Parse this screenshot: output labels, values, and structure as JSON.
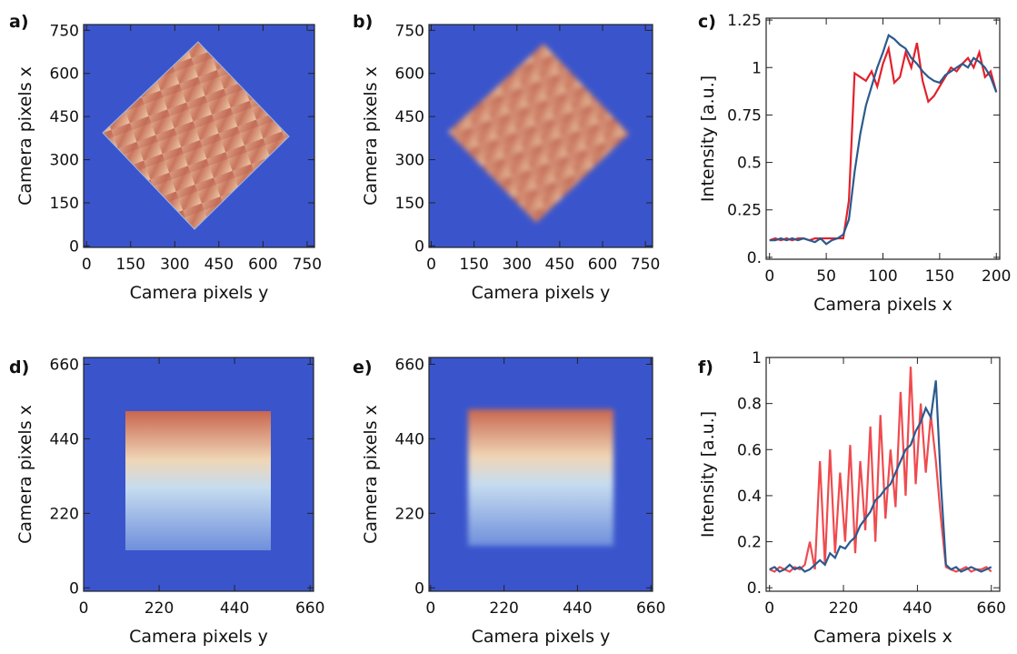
{
  "chart_data": [
    {
      "type": "image",
      "panel_label": "a)",
      "xlabel": "Camera pixels y",
      "ylabel": "Camera pixels x",
      "xlim": [
        -10,
        775
      ],
      "ylim": [
        -5,
        770
      ],
      "xticks": [
        0,
        150,
        300,
        450,
        600,
        750
      ],
      "yticks": [
        0,
        150,
        300,
        450,
        600,
        750
      ]
    },
    {
      "type": "image",
      "panel_label": "b)",
      "xlabel": "Camera pixels y",
      "ylabel": "Camera pixels x",
      "xlim": [
        -8,
        775
      ],
      "ylim": [
        -5,
        770
      ],
      "xticks": [
        0,
        150,
        300,
        450,
        600,
        750
      ],
      "yticks": [
        0,
        150,
        300,
        450,
        600,
        750
      ]
    },
    {
      "type": "line",
      "panel_label": "c)",
      "xlabel": "Camera pixels x",
      "ylabel": "Intensity [a.u.]",
      "xlim": [
        -3,
        203
      ],
      "ylim": [
        -0.01,
        1.26
      ],
      "xticks": [
        0,
        50,
        100,
        150,
        200
      ],
      "yticks": [
        {
          "value": 0,
          "label": "0."
        },
        0.25,
        0.5,
        0.75,
        1,
        1.25
      ],
      "x": [
        0,
        5,
        10,
        15,
        20,
        25,
        30,
        35,
        40,
        45,
        50,
        55,
        60,
        65,
        70,
        75,
        80,
        85,
        90,
        95,
        100,
        105,
        110,
        115,
        120,
        125,
        130,
        135,
        140,
        145,
        150,
        155,
        160,
        165,
        170,
        175,
        180,
        185,
        190,
        195,
        200
      ],
      "series": [
        {
          "color": "#e3212b",
          "values": [
            0.09,
            0.1,
            0.09,
            0.1,
            0.09,
            0.1,
            0.1,
            0.09,
            0.1,
            0.1,
            0.1,
            0.1,
            0.1,
            0.1,
            0.3,
            0.97,
            0.95,
            0.93,
            0.98,
            0.9,
            1.02,
            1.1,
            0.92,
            0.95,
            1.08,
            1.0,
            1.13,
            0.93,
            0.82,
            0.85,
            0.9,
            0.95,
            1.0,
            0.98,
            1.02,
            1.05,
            1.0,
            1.08,
            0.95,
            0.98,
            0.87
          ]
        },
        {
          "color": "#2b5a8e",
          "values": [
            0.09,
            0.09,
            0.1,
            0.09,
            0.1,
            0.09,
            0.1,
            0.09,
            0.08,
            0.1,
            0.07,
            0.09,
            0.1,
            0.12,
            0.2,
            0.45,
            0.65,
            0.8,
            0.9,
            1.0,
            1.08,
            1.17,
            1.15,
            1.12,
            1.1,
            1.05,
            1.02,
            0.98,
            0.95,
            0.93,
            0.92,
            0.96,
            0.98,
            1.0,
            1.02,
            1.0,
            1.05,
            1.03,
            1.0,
            0.95,
            0.87
          ]
        }
      ]
    },
    {
      "type": "image",
      "panel_label": "d)",
      "xlabel": "Camera pixels y",
      "ylabel": "Camera pixels x",
      "xlim": [
        0,
        670
      ],
      "ylim": [
        -10,
        680
      ],
      "xticks": [
        0,
        220,
        440,
        660
      ],
      "yticks": [
        0,
        220,
        440,
        660
      ]
    },
    {
      "type": "image",
      "panel_label": "e)",
      "xlabel": "Camera pixels y",
      "ylabel": "Camera pixels x",
      "xlim": [
        -5,
        665
      ],
      "ylim": [
        -10,
        680
      ],
      "xticks": [
        0,
        220,
        440,
        660
      ],
      "yticks": [
        0,
        220,
        440,
        660
      ]
    },
    {
      "type": "line",
      "panel_label": "f)",
      "xlabel": "Camera pixels x",
      "ylabel": "Intensity [a.u.]",
      "xlim": [
        -10,
        685
      ],
      "ylim": [
        -0.015,
        1.0
      ],
      "xticks": [
        0,
        220,
        440,
        660
      ],
      "yticks": [
        {
          "value": 0,
          "label": "0."
        },
        0.2,
        0.4,
        0.6,
        0.8,
        1
      ],
      "x": [
        0,
        15,
        30,
        45,
        60,
        75,
        90,
        105,
        120,
        135,
        150,
        165,
        180,
        195,
        210,
        225,
        240,
        255,
        270,
        285,
        300,
        315,
        330,
        345,
        360,
        375,
        390,
        405,
        420,
        435,
        450,
        465,
        480,
        495,
        510,
        525,
        540,
        555,
        570,
        585,
        600,
        615,
        630,
        645,
        660
      ],
      "series": [
        {
          "color": "#ef4b4f",
          "values": [
            0.08,
            0.07,
            0.09,
            0.08,
            0.07,
            0.09,
            0.08,
            0.1,
            0.2,
            0.08,
            0.55,
            0.1,
            0.6,
            0.15,
            0.5,
            0.2,
            0.62,
            0.15,
            0.55,
            0.25,
            0.7,
            0.2,
            0.75,
            0.3,
            0.6,
            0.35,
            0.85,
            0.4,
            0.96,
            0.45,
            0.8,
            0.5,
            0.75,
            0.55,
            0.3,
            0.09,
            0.08,
            0.07,
            0.08,
            0.09,
            0.07,
            0.08,
            0.08,
            0.09,
            0.07
          ]
        },
        {
          "color": "#2b5a8e",
          "values": [
            0.08,
            0.09,
            0.07,
            0.08,
            0.1,
            0.08,
            0.09,
            0.07,
            0.08,
            0.1,
            0.12,
            0.1,
            0.15,
            0.13,
            0.18,
            0.17,
            0.2,
            0.22,
            0.27,
            0.3,
            0.33,
            0.38,
            0.4,
            0.43,
            0.45,
            0.5,
            0.55,
            0.6,
            0.62,
            0.68,
            0.72,
            0.78,
            0.74,
            0.9,
            0.45,
            0.1,
            0.08,
            0.09,
            0.07,
            0.08,
            0.09,
            0.08,
            0.07,
            0.08,
            0.09
          ]
        }
      ]
    }
  ]
}
